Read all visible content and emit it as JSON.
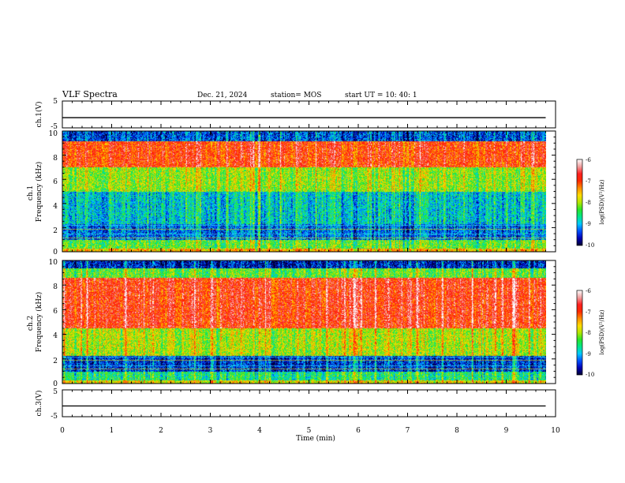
{
  "header": {
    "title": "VLF Spectra",
    "date": "Dec. 21, 2024",
    "station": "station= MOS",
    "start_ut": "start  UT  =   10: 40: 1"
  },
  "colors": {
    "ramp": [
      "#000030",
      "#0000b4",
      "#0050ff",
      "#00c8ff",
      "#00e68c",
      "#28e628",
      "#b4e600",
      "#ffdc00",
      "#ff8c00",
      "#ff2800",
      "#ff2020",
      "#f0a0a0",
      "#ffffff"
    ],
    "trace": "#000000"
  },
  "chart_data": [
    {
      "type": "line",
      "id": "ch1-waveform",
      "ylabel": "ch.1(V)",
      "ylim": [
        -5,
        5
      ],
      "yticks": [
        5,
        -5
      ],
      "xlim": [
        0,
        10
      ],
      "series": [
        {
          "values_approx_constant": -1.2
        }
      ]
    },
    {
      "type": "heatmap",
      "id": "ch1-spectrogram",
      "ylabel": "ch.1\nFrequency (kHz)",
      "ylabel_lines": [
        "ch.1",
        "Frequency (kHz)"
      ],
      "ylim": [
        0,
        10
      ],
      "yticks": [
        0,
        2,
        4,
        6,
        8,
        10
      ],
      "xlim": [
        0,
        10
      ],
      "data_xmax": 9.8,
      "colorbar": {
        "label": "log(PSD)(V²/Hz)",
        "range": [
          -10,
          -6
        ],
        "ticks": [
          -6,
          -7,
          -8,
          -9,
          -10
        ]
      },
      "bands_log_psd": [
        {
          "f": [
            0,
            0.3
          ],
          "level": -7.6
        },
        {
          "f": [
            0.3,
            1.0
          ],
          "level": -8.3
        },
        {
          "f": [
            1.0,
            2.3
          ],
          "level": -9.3
        },
        {
          "f": [
            2.3,
            5.0
          ],
          "level": -8.9
        },
        {
          "f": [
            5.0,
            7.0
          ],
          "level": -8.1
        },
        {
          "f": [
            7.0,
            9.2
          ],
          "level": -7.0
        },
        {
          "f": [
            9.2,
            10
          ],
          "level": -9.4
        }
      ]
    },
    {
      "type": "heatmap",
      "id": "ch2-spectrogram",
      "ylabel": "ch.2\nFrequency (kHz)",
      "ylabel_lines": [
        "ch.2",
        "Frequency (kHz)"
      ],
      "ylim": [
        0,
        10
      ],
      "yticks": [
        0,
        2,
        4,
        6,
        8,
        10
      ],
      "xlim": [
        0,
        10
      ],
      "data_xmax": 9.8,
      "colorbar": {
        "label": "log(PSD)(V²/Hz)",
        "range": [
          -10,
          -6
        ],
        "ticks": [
          -6,
          -7,
          -8,
          -9,
          -10
        ]
      },
      "bands_log_psd": [
        {
          "f": [
            0,
            0.3
          ],
          "level": -7.8
        },
        {
          "f": [
            0.3,
            1.0
          ],
          "level": -8.6
        },
        {
          "f": [
            1.0,
            2.3
          ],
          "level": -9.5
        },
        {
          "f": [
            2.3,
            4.5
          ],
          "level": -8.0
        },
        {
          "f": [
            4.5,
            8.6
          ],
          "level": -6.9
        },
        {
          "f": [
            8.6,
            9.4
          ],
          "level": -8.3
        },
        {
          "f": [
            9.4,
            10
          ],
          "level": -9.6
        }
      ]
    },
    {
      "type": "line",
      "id": "ch3-waveform",
      "ylabel": "ch.3(V)",
      "ylim": [
        -5,
        5
      ],
      "yticks": [
        5,
        -5
      ],
      "xlim": [
        0,
        10
      ],
      "series": [
        {
          "values_approx_constant": -1.0
        }
      ]
    }
  ],
  "xaxis": {
    "label": "Time  (min)",
    "ticks": [
      0,
      1,
      2,
      3,
      4,
      5,
      6,
      7,
      8,
      9,
      10
    ]
  }
}
